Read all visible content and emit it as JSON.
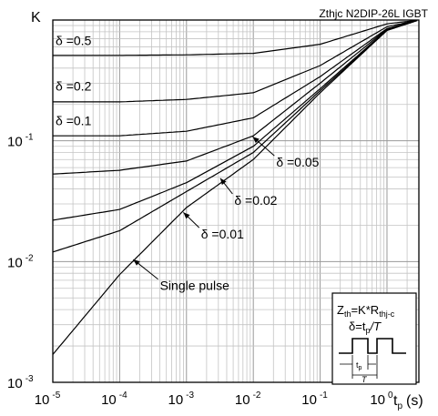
{
  "chart_data": {
    "type": "line",
    "title": "Zthjc N2DIP-26L IGBT",
    "ylabel": "K",
    "xlabel": "t",
    "xlabel_sub": "p",
    "xlabel_unit": "(s)",
    "xscale": "log",
    "yscale": "log",
    "xlim": [
      1e-05,
      3
    ],
    "ylim": [
      0.001,
      1
    ],
    "grid": true,
    "x_ticks": [
      {
        "base": "10",
        "exp": "-5",
        "value": 1e-05
      },
      {
        "base": "10",
        "exp": "-4",
        "value": 0.0001
      },
      {
        "base": "10",
        "exp": "-3",
        "value": 0.001
      },
      {
        "base": "10",
        "exp": "-2",
        "value": 0.01
      },
      {
        "base": "10",
        "exp": "-1",
        "value": 0.1
      },
      {
        "base": "10",
        "exp": "0",
        "value": 1
      }
    ],
    "y_ticks": [
      {
        "base": "10",
        "exp": "-1",
        "value": 0.1
      },
      {
        "base": "10",
        "exp": "-2",
        "value": 0.01
      },
      {
        "base": "10",
        "exp": "-3",
        "value": 0.001
      }
    ],
    "x": [
      1e-05,
      0.0001,
      0.001,
      0.01,
      0.1,
      1,
      3
    ],
    "series": [
      {
        "name": "δ =0.5",
        "values": [
          0.51,
          0.51,
          0.515,
          0.53,
          0.63,
          0.93,
          1.0
        ],
        "label_x": 1.1e-05,
        "label_y": 0.62
      },
      {
        "name": "δ =0.2",
        "values": [
          0.21,
          0.21,
          0.22,
          0.25,
          0.42,
          0.88,
          1.0
        ],
        "label_x": 1.1e-05,
        "label_y": 0.26
      },
      {
        "name": "δ =0.1",
        "values": [
          0.11,
          0.11,
          0.12,
          0.155,
          0.34,
          0.85,
          1.0
        ],
        "label_x": 1.1e-05,
        "label_y": 0.135
      },
      {
        "name": "δ =0.05",
        "values": [
          0.053,
          0.057,
          0.068,
          0.11,
          0.3,
          0.84,
          1.0
        ]
      },
      {
        "name": "δ =0.02",
        "values": [
          0.022,
          0.027,
          0.045,
          0.09,
          0.27,
          0.83,
          1.0
        ]
      },
      {
        "name": "δ =0.01",
        "values": [
          0.012,
          0.018,
          0.038,
          0.08,
          0.26,
          0.82,
          1.0
        ]
      },
      {
        "name": "Single pulse",
        "values": [
          0.0017,
          0.0078,
          0.028,
          0.07,
          0.25,
          0.82,
          1.0
        ]
      }
    ],
    "callouts": [
      {
        "text": "δ =0.05",
        "x": 0.0098,
        "y": 0.108,
        "tx": 0.022,
        "ty": 0.061
      },
      {
        "text": "δ =0.02",
        "x": 0.0032,
        "y": 0.049,
        "tx": 0.0052,
        "ty": 0.0295
      },
      {
        "text": "δ =0.01",
        "x": 0.0009,
        "y": 0.0255,
        "tx": 0.00165,
        "ty": 0.0155
      },
      {
        "text": "Single pulse",
        "x": 0.00016,
        "y": 0.0104,
        "tx": 0.0004,
        "ty": 0.0058
      }
    ],
    "inset": {
      "line1": "Z",
      "line1_sub": "th",
      "line1_mid": "=K*R",
      "line1_sub2": "thj-c",
      "line2": "δ=t",
      "line2_sub": "p",
      "line2_end": "/T",
      "pulse_tp": "t",
      "pulse_tp_sub": "p",
      "pulse_T": "T"
    }
  }
}
